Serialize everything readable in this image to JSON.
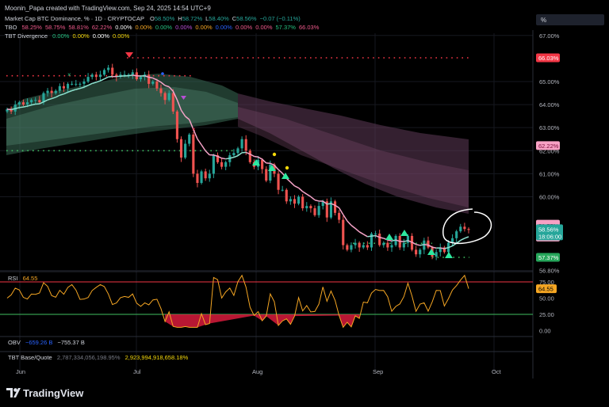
{
  "header": {
    "credit": "Moonin_Papa created with TradingView.com, Sep 24, 2025 14:54 UTC+9",
    "symbol_line": "Market Cap BTC Dominance, % · 1D · CRYPTOCAP",
    "ohlc": [
      {
        "k": "O",
        "v": "58.50%"
      },
      {
        "k": "H",
        "v": "58.72%"
      },
      {
        "k": "L",
        "v": "58.40%"
      },
      {
        "k": "C",
        "v": "58.56%"
      }
    ],
    "change": "−0.07 (−0.11%)",
    "tbo_label": "TBO",
    "tbo_values": [
      "58.25%",
      "58.75%",
      "58.81%",
      "62.22%",
      "0.00%",
      "0.00%",
      "0.00%",
      "0.00%",
      "0.00%",
      "0.00%",
      "0.00%",
      "0.00%",
      "57.37%",
      "66.03%"
    ],
    "tbo_colors": [
      "#f05a8c",
      "#f05a8c",
      "#f05a8c",
      "#f05a8c",
      "#ffffff",
      "#f5a623",
      "#26c281",
      "#b84fd6",
      "#f5a623",
      "#2962ff",
      "#f05a8c",
      "#f05a8c",
      "#26c281",
      "#f05a8c"
    ],
    "tbt_label": "TBT Divergence",
    "tbt_values": [
      "0.00%",
      "0.00%",
      "0.00%",
      "0.00%"
    ],
    "tbt_colors": [
      "#26c281",
      "#f5d90a",
      "#ffffff",
      "#f5d90a"
    ],
    "scale_button": "%"
  },
  "price_axis": {
    "ticks": [
      {
        "v": 67,
        "label": "67.00%"
      },
      {
        "v": 65,
        "label": "65.00%"
      },
      {
        "v": 64,
        "label": "64.00%"
      },
      {
        "v": 63,
        "label": "63.00%"
      },
      {
        "v": 62,
        "label": "62.00%"
      },
      {
        "v": 61,
        "label": "61.00%"
      },
      {
        "v": 60,
        "label": "60.00%"
      },
      {
        "v": 56.8,
        "label": "56.80%"
      }
    ],
    "markers": [
      {
        "v": 66.03,
        "label": "66.03%",
        "bg": "#f23645",
        "fg": "#ffffff"
      },
      {
        "v": 62.22,
        "label": "62.22%",
        "bg": "#f7a1c4",
        "fg": "#7a0d3a"
      },
      {
        "v": 58.81,
        "label": "58.81%",
        "bg": "#f7a1c4",
        "fg": "#7a0d3a"
      },
      {
        "v": 58.75,
        "label": "58.75%",
        "bg": "#f7a1c4",
        "fg": "#7a0d3a"
      },
      {
        "v": 58.25,
        "label": "58.25%",
        "bg": "#f7a1c4",
        "fg": "#7a0d3a"
      },
      {
        "v": 57.37,
        "label": "57.37%",
        "bg": "#26a65b",
        "fg": "#ffffff"
      }
    ],
    "last_price": {
      "v": 58.56,
      "label": "58.56%",
      "countdown": "18:06:00",
      "bg": "#26a69a"
    }
  },
  "rsi": {
    "title": "RSI",
    "value": "64.55",
    "value_num": 64.55,
    "ticks": [
      "75.00",
      "50.00",
      "25.00",
      "0.00"
    ]
  },
  "obv": {
    "title": "OBV",
    "v1": "−659.26 B",
    "v2": "−755.37 B"
  },
  "tbt_base": {
    "title": "TBT Base/Quote",
    "v1": "2,787,334,056,198.95%",
    "v2": "2,923,994,918,658.18%"
  },
  "time_axis": [
    "Jun",
    "Jul",
    "Aug",
    "Sep",
    "Oct"
  ],
  "footer": {
    "brand": "TradingView"
  },
  "chart_data": {
    "type": "candlestick",
    "x_months": [
      "Jun",
      "Jul",
      "Aug",
      "Sep",
      "Oct"
    ],
    "price_series_close": [
      63.8,
      63.7,
      64.0,
      64.1,
      64.0,
      64.1,
      64.2,
      64.2,
      64.1,
      64.5,
      64.6,
      64.5,
      64.6,
      64.8,
      64.7,
      64.9,
      64.9,
      64.9,
      64.9,
      65.0,
      65.2,
      65.3,
      65.2,
      65.3,
      65.5,
      65.6,
      65.3,
      65.2,
      65.3,
      65.3,
      65.3,
      65.4,
      65.1,
      65.2,
      65.3,
      64.9,
      65.0,
      64.7,
      64.5,
      64.2,
      64.5,
      63.7,
      62.5,
      61.7,
      62.3,
      62.7,
      61.0,
      60.6,
      61.1,
      60.8,
      61.0,
      61.8,
      61.5,
      61.3,
      61.5,
      61.8,
      61.9,
      62.1,
      62.5,
      62.0,
      61.5,
      61.3,
      61.6,
      61.2,
      60.7,
      61.4,
      61.0,
      60.3,
      60.3,
      59.8,
      59.9,
      59.7,
      60.0,
      59.5,
      59.6,
      59.5,
      59.2,
      59.6,
      59.8,
      59.1,
      59.8,
      59.3,
      59.0,
      57.9,
      57.7,
      57.9,
      58.0,
      57.8,
      57.9,
      57.8,
      58.4,
      58.4,
      57.9,
      58.0,
      57.8,
      57.9,
      58.3,
      57.8,
      58.0,
      58.3,
      57.7,
      57.5,
      57.7,
      58.1,
      57.8,
      57.4,
      57.6,
      57.8,
      57.6,
      58.0,
      58.2,
      58.5,
      58.7,
      58.6,
      58.56
    ],
    "last_close": 58.56,
    "levels": [
      66.03,
      62.22,
      58.81,
      58.75,
      58.25,
      57.37
    ],
    "rsi_last": 64.55,
    "rsi_levels": [
      75,
      50,
      25
    ]
  }
}
